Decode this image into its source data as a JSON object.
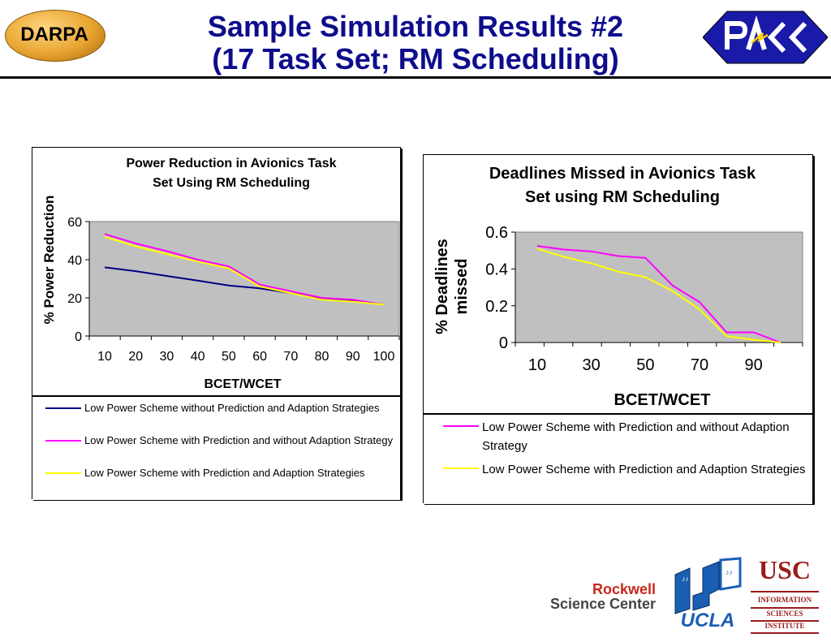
{
  "slide": {
    "title_line1": "Sample Simulation Results #2",
    "title_line2": "(17 Task Set; RM Scheduling)"
  },
  "logos": {
    "darpa": "DARPA",
    "rockwell_line1": "Rockwell",
    "rockwell_line2": "Science Center",
    "ucla": "UCLA",
    "usc": "USC",
    "usc_sub1": "INFORMATION",
    "usc_sub2": "SCIENCES",
    "usc_sub3": "INSTITUTE"
  },
  "colors": {
    "title": "#0d0d8c",
    "plot_bg": "#c0c0c0",
    "navy": "#000080",
    "magenta": "#ff00ff",
    "yellow": "#ffff00"
  },
  "chart_data": [
    {
      "type": "line",
      "title_line1": "Power Reduction in Avionics Task",
      "title_line2": "Set Using RM Scheduling",
      "xlabel": "BCET/WCET",
      "ylabel": "% Power Reduction",
      "x": [
        10,
        20,
        30,
        40,
        50,
        60,
        70,
        80,
        90,
        100
      ],
      "xticks": [
        "10",
        "20",
        "30",
        "40",
        "50",
        "60",
        "70",
        "80",
        "90",
        "100"
      ],
      "yticks": [
        "0",
        "20",
        "40",
        "60"
      ],
      "ylim": [
        0,
        60
      ],
      "grid": false,
      "legend_position": "bottom",
      "series": [
        {
          "name": "Low Power Scheme without Prediction and Adaption Strategies",
          "color": "#000080",
          "values": [
            36,
            34,
            31.5,
            29,
            26.5,
            25,
            22.5,
            19.5,
            18.5,
            16.5
          ]
        },
        {
          "name": "Low Power Scheme with Prediction and without Adaption Strategy",
          "color": "#ff00ff",
          "values": [
            53.5,
            48.5,
            44.5,
            40,
            36.5,
            27,
            23.5,
            20,
            19,
            16.5
          ]
        },
        {
          "name": "Low Power Scheme with Prediction and Adaption Strategies",
          "color": "#ffff00",
          "values": [
            52,
            47,
            43,
            39,
            35.5,
            26,
            22.5,
            19,
            18,
            16.5
          ]
        }
      ]
    },
    {
      "type": "line",
      "title_line1": "Deadlines Missed in Avionics Task",
      "title_line2": "Set using RM Scheduling",
      "xlabel": "BCET/WCET",
      "ylabel_line1": "% Deadlines",
      "ylabel_line2": "missed",
      "x": [
        10,
        20,
        30,
        40,
        50,
        60,
        70,
        80,
        90,
        100
      ],
      "xticks": [
        "10",
        "30",
        "50",
        "70",
        "90"
      ],
      "yticks": [
        "0",
        "0.2",
        "0.4",
        "0.6"
      ],
      "ylim": [
        0,
        0.6
      ],
      "grid": false,
      "legend_position": "bottom",
      "series": [
        {
          "name": "Low Power Scheme with Prediction and without Adaption Strategy",
          "color": "#ff00ff",
          "values": [
            0.525,
            0.505,
            0.495,
            0.47,
            0.46,
            0.31,
            0.22,
            0.055,
            0.055,
            0
          ]
        },
        {
          "name": "Low Power Scheme with Prediction and Adaption Strategies",
          "color": "#ffff00",
          "values": [
            0.51,
            0.465,
            0.43,
            0.385,
            0.355,
            0.28,
            0.18,
            0.035,
            0.015,
            0
          ]
        }
      ]
    }
  ]
}
